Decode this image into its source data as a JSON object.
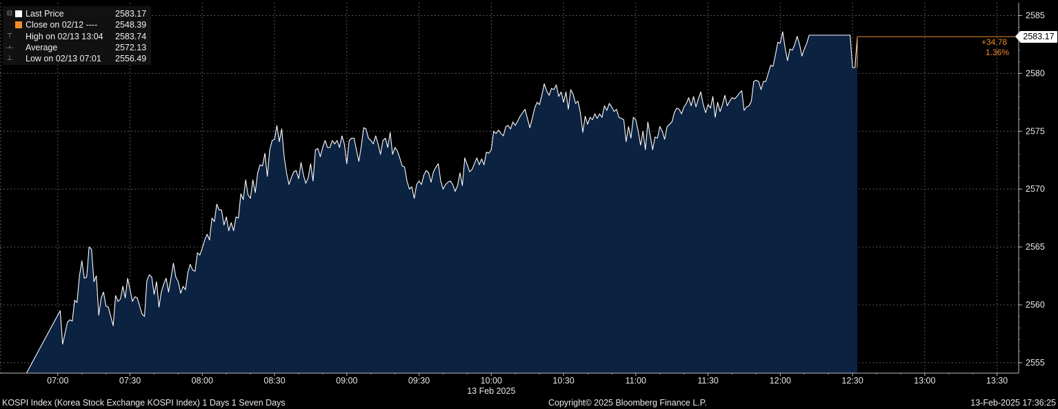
{
  "legend": {
    "items": [
      {
        "marker": "⊟",
        "label": "Last Price",
        "value": "2583.17",
        "color": "#ffffff"
      },
      {
        "marker": "",
        "label": "Close on 02/12",
        "dash": "----",
        "value": "2548.39",
        "color": "#f28b2c"
      },
      {
        "marker": "⊤",
        "label": "High on 02/13 13:04",
        "value": "2583.74",
        "color": ""
      },
      {
        "marker": "-+-",
        "label": "Average",
        "value": "2572.13",
        "color": ""
      },
      {
        "marker": "⊥",
        "label": "Low on 02/13 07:01",
        "value": "2556.49",
        "color": ""
      }
    ]
  },
  "change": {
    "abs": "+34.78",
    "pct": "1.36%"
  },
  "last_tag": "2583.17",
  "footer": {
    "left": "KOSPI Index (Korea Stock Exchange KOSPI Index) 1 Days 1 Seven Days",
    "center": "Copyright© 2025 Bloomberg Finance L.P.",
    "right": "13-Feb-2025 17:36:25"
  },
  "chart_data": {
    "type": "area",
    "series": [
      {
        "name": "Last Price",
        "color": "#ffffff",
        "fill": "#0c2241"
      }
    ],
    "xlabel": "13 Feb 2025",
    "x_ticks": [
      "07:00",
      "07:30",
      "08:00",
      "08:30",
      "09:00",
      "09:30",
      "10:00",
      "10:30",
      "11:00",
      "11:30",
      "12:00",
      "12:30",
      "13:00",
      "13:30"
    ],
    "y_ticks": [
      2555,
      2560,
      2565,
      2570,
      2575,
      2580,
      2585
    ],
    "ylim": [
      2554.1,
      2586.1
    ],
    "x_range_minutes": [
      396,
      819
    ],
    "grid": true,
    "points": [
      [
        407,
        2554.1
      ],
      [
        421,
        2559.5
      ],
      [
        422,
        2556.6
      ],
      [
        424,
        2558.5
      ],
      [
        425,
        2558.7
      ],
      [
        426,
        2558.6
      ],
      [
        427,
        2560.4
      ],
      [
        428,
        2560.2
      ],
      [
        429,
        2562.5
      ],
      [
        430,
        2563.8
      ],
      [
        431,
        2562.3
      ],
      [
        432,
        2562.4
      ],
      [
        433,
        2565.0
      ],
      [
        434,
        2564.8
      ],
      [
        435,
        2562.0
      ],
      [
        436,
        2562.5
      ],
      [
        437,
        2559.1
      ],
      [
        438,
        2560.6
      ],
      [
        439,
        2561.1
      ],
      [
        440,
        2559.9
      ],
      [
        441,
        2559.8
      ],
      [
        442,
        2559.0
      ],
      [
        443,
        2558.2
      ],
      [
        444,
        2560.8
      ],
      [
        445,
        2560.3
      ],
      [
        446,
        2560.5
      ],
      [
        447,
        2561.6
      ],
      [
        448,
        2560.6
      ],
      [
        449,
        2562.3
      ],
      [
        450,
        2561.3
      ],
      [
        451,
        2560.3
      ],
      [
        452,
        2560.7
      ],
      [
        453,
        2560.6
      ],
      [
        454,
        2559.9
      ],
      [
        455,
        2559.2
      ],
      [
        456,
        2559.0
      ],
      [
        457,
        2562.1
      ],
      [
        458,
        2562.6
      ],
      [
        459,
        2562.4
      ],
      [
        460,
        2560.9
      ],
      [
        461,
        2562.0
      ],
      [
        462,
        2559.8
      ],
      [
        463,
        2561.1
      ],
      [
        464,
        2561.8
      ],
      [
        465,
        2562.3
      ],
      [
        466,
        2561.1
      ],
      [
        467,
        2562.3
      ],
      [
        468,
        2563.6
      ],
      [
        469,
        2562.4
      ],
      [
        470,
        2562.0
      ],
      [
        471,
        2561.0
      ],
      [
        472,
        2561.6
      ],
      [
        473,
        2561.3
      ],
      [
        474,
        2562.8
      ],
      [
        475,
        2563.5
      ],
      [
        476,
        2563.0
      ],
      [
        477,
        2562.9
      ],
      [
        478,
        2564.5
      ],
      [
        479,
        2564.3
      ],
      [
        480,
        2564.9
      ],
      [
        481,
        2565.6
      ],
      [
        482,
        2566.1
      ],
      [
        483,
        2565.6
      ],
      [
        484,
        2567.5
      ],
      [
        485,
        2567.2
      ],
      [
        486,
        2568.7
      ],
      [
        487,
        2568.2
      ],
      [
        488,
        2568.2
      ],
      [
        489,
        2566.9
      ],
      [
        490,
        2567.6
      ],
      [
        491,
        2566.4
      ],
      [
        492,
        2567.1
      ],
      [
        493,
        2566.4
      ],
      [
        494,
        2567.6
      ],
      [
        495,
        2567.5
      ],
      [
        496,
        2569.6
      ],
      [
        497,
        2569.1
      ],
      [
        498,
        2570.8
      ],
      [
        499,
        2569.5
      ],
      [
        500,
        2569.2
      ],
      [
        501,
        2570.8
      ],
      [
        502,
        2569.7
      ],
      [
        503,
        2571.4
      ],
      [
        504,
        2572.1
      ],
      [
        505,
        2572.0
      ],
      [
        506,
        2573.1
      ],
      [
        507,
        2571.1
      ],
      [
        508,
        2573.4
      ],
      [
        509,
        2574.2
      ],
      [
        510,
        2574.3
      ],
      [
        511,
        2575.5
      ],
      [
        512,
        2574.1
      ],
      [
        513,
        2575.2
      ],
      [
        514,
        2572.8
      ],
      [
        515,
        2571.4
      ],
      [
        516,
        2570.4
      ],
      [
        517,
        2571.0
      ],
      [
        518,
        2571.5
      ],
      [
        519,
        2571.6
      ],
      [
        520,
        2570.9
      ],
      [
        521,
        2572.3
      ],
      [
        522,
        2571.2
      ],
      [
        523,
        2570.5
      ],
      [
        524,
        2571.0
      ],
      [
        525,
        2572.2
      ],
      [
        526,
        2570.7
      ],
      [
        527,
        2573.4
      ],
      [
        528,
        2573.5
      ],
      [
        529,
        2572.8
      ],
      [
        530,
        2573.6
      ],
      [
        531,
        2574.2
      ],
      [
        532,
        2573.6
      ],
      [
        533,
        2573.6
      ],
      [
        534,
        2574.2
      ],
      [
        535,
        2573.9
      ],
      [
        536,
        2574.2
      ],
      [
        537,
        2573.6
      ],
      [
        538,
        2574.6
      ],
      [
        539,
        2573.9
      ],
      [
        540,
        2572.2
      ],
      [
        541,
        2574.2
      ],
      [
        542,
        2574.4
      ],
      [
        543,
        2574.4
      ],
      [
        544,
        2573.4
      ],
      [
        545,
        2572.4
      ],
      [
        546,
        2573.7
      ],
      [
        547,
        2575.3
      ],
      [
        548,
        2575.2
      ],
      [
        549,
        2574.4
      ],
      [
        550,
        2574.2
      ],
      [
        551,
        2573.9
      ],
      [
        552,
        2574.6
      ],
      [
        553,
        2573.9
      ],
      [
        554,
        2573.0
      ],
      [
        555,
        2574.2
      ],
      [
        556,
        2574.4
      ],
      [
        557,
        2573.6
      ],
      [
        558,
        2574.9
      ],
      [
        559,
        2573.0
      ],
      [
        560,
        2573.6
      ],
      [
        561,
        2573.3
      ],
      [
        562,
        2572.7
      ],
      [
        563,
        2572.0
      ],
      [
        564,
        2571.9
      ],
      [
        565,
        2570.7
      ],
      [
        566,
        2570.0
      ],
      [
        567,
        2570.2
      ],
      [
        568,
        2569.2
      ],
      [
        569,
        2570.4
      ],
      [
        570,
        2570.7
      ],
      [
        571,
        2570.4
      ],
      [
        572,
        2571.2
      ],
      [
        573,
        2571.6
      ],
      [
        574,
        2571.4
      ],
      [
        575,
        2570.6
      ],
      [
        576,
        2571.5
      ],
      [
        577,
        2571.9
      ],
      [
        578,
        2572.2
      ],
      [
        579,
        2570.7
      ],
      [
        580,
        2570.0
      ],
      [
        581,
        2570.4
      ],
      [
        582,
        2570.6
      ],
      [
        583,
        2570.7
      ],
      [
        584,
        2570.4
      ],
      [
        585,
        2569.8
      ],
      [
        586,
        2570.3
      ],
      [
        587,
        2571.4
      ],
      [
        588,
        2570.3
      ],
      [
        589,
        2572.7
      ],
      [
        590,
        2572.1
      ],
      [
        591,
        2571.5
      ],
      [
        592,
        2571.7
      ],
      [
        593,
        2572.2
      ],
      [
        594,
        2572.7
      ],
      [
        595,
        2572.1
      ],
      [
        596,
        2572.6
      ],
      [
        597,
        2572.1
      ],
      [
        598,
        2573.2
      ],
      [
        599,
        2573.1
      ],
      [
        600,
        2573.4
      ],
      [
        601,
        2575.0
      ],
      [
        602,
        2574.8
      ],
      [
        603,
        2575.1
      ],
      [
        604,
        2574.8
      ],
      [
        605,
        2574.6
      ],
      [
        606,
        2575.4
      ],
      [
        607,
        2575.5
      ],
      [
        608,
        2575.2
      ],
      [
        609,
        2575.8
      ],
      [
        610,
        2575.5
      ],
      [
        611,
        2575.9
      ],
      [
        612,
        2576.3
      ],
      [
        613,
        2576.6
      ],
      [
        614,
        2576.9
      ],
      [
        615,
        2576.1
      ],
      [
        616,
        2575.3
      ],
      [
        617,
        2576.1
      ],
      [
        618,
        2577.0
      ],
      [
        619,
        2577.5
      ],
      [
        620,
        2577.3
      ],
      [
        621,
        2578.1
      ],
      [
        622,
        2579.1
      ],
      [
        623,
        2578.5
      ],
      [
        624,
        2578.1
      ],
      [
        625,
        2578.7
      ],
      [
        626,
        2578.6
      ],
      [
        627,
        2579.0
      ],
      [
        628,
        2578.0
      ],
      [
        629,
        2578.4
      ],
      [
        630,
        2577.5
      ],
      [
        631,
        2578.4
      ],
      [
        632,
        2576.9
      ],
      [
        633,
        2578.6
      ],
      [
        634,
        2578.2
      ],
      [
        635,
        2577.4
      ],
      [
        636,
        2577.6
      ],
      [
        637,
        2576.6
      ],
      [
        638,
        2574.9
      ],
      [
        639,
        2576.3
      ],
      [
        640,
        2575.6
      ],
      [
        641,
        2576.2
      ],
      [
        642,
        2576.0
      ],
      [
        643,
        2576.5
      ],
      [
        644,
        2576.1
      ],
      [
        645,
        2576.5
      ],
      [
        646,
        2576.2
      ],
      [
        647,
        2577.2
      ],
      [
        648,
        2576.8
      ],
      [
        649,
        2577.4
      ],
      [
        650,
        2577.1
      ],
      [
        651,
        2576.7
      ],
      [
        652,
        2576.9
      ],
      [
        653,
        2576.2
      ],
      [
        654,
        2576.1
      ],
      [
        655,
        2576.0
      ],
      [
        656,
        2574.1
      ],
      [
        657,
        2575.4
      ],
      [
        658,
        2574.4
      ],
      [
        659,
        2576.2
      ],
      [
        660,
        2576.0
      ],
      [
        661,
        2575.0
      ],
      [
        662,
        2573.8
      ],
      [
        663,
        2575.0
      ],
      [
        664,
        2573.4
      ],
      [
        665,
        2575.8
      ],
      [
        666,
        2574.6
      ],
      [
        667,
        2573.4
      ],
      [
        668,
        2574.5
      ],
      [
        669,
        2574.4
      ],
      [
        670,
        2575.4
      ],
      [
        671,
        2575.0
      ],
      [
        672,
        2574.3
      ],
      [
        673,
        2575.4
      ],
      [
        674,
        2575.6
      ],
      [
        675,
        2575.8
      ],
      [
        676,
        2576.6
      ],
      [
        677,
        2577.0
      ],
      [
        678,
        2576.9
      ],
      [
        679,
        2576.5
      ],
      [
        680,
        2577.1
      ],
      [
        681,
        2577.4
      ],
      [
        682,
        2577.9
      ],
      [
        683,
        2577.2
      ],
      [
        684,
        2578.0
      ],
      [
        685,
        2577.1
      ],
      [
        686,
        2577.8
      ],
      [
        687,
        2578.4
      ],
      [
        688,
        2577.3
      ],
      [
        689,
        2576.6
      ],
      [
        690,
        2577.3
      ],
      [
        691,
        2577.0
      ],
      [
        692,
        2578.0
      ],
      [
        693,
        2576.2
      ],
      [
        694,
        2577.5
      ],
      [
        695,
        2576.7
      ],
      [
        696,
        2577.3
      ],
      [
        697,
        2578.1
      ],
      [
        698,
        2577.2
      ],
      [
        699,
        2577.6
      ],
      [
        700,
        2577.9
      ],
      [
        701,
        2577.8
      ],
      [
        702,
        2578.0
      ],
      [
        703,
        2578.3
      ],
      [
        704,
        2578.5
      ],
      [
        705,
        2576.8
      ],
      [
        706,
        2577.1
      ],
      [
        707,
        2577.2
      ],
      [
        708,
        2577.6
      ],
      [
        709,
        2579.3
      ],
      [
        710,
        2579.4
      ],
      [
        711,
        2579.3
      ],
      [
        712,
        2578.6
      ],
      [
        713,
        2579.3
      ],
      [
        714,
        2579.3
      ],
      [
        715,
        2580.0
      ],
      [
        716,
        2580.7
      ],
      [
        717,
        2580.6
      ],
      [
        718,
        2581.6
      ],
      [
        719,
        2582.7
      ],
      [
        720,
        2582.6
      ],
      [
        721,
        2583.6
      ],
      [
        722,
        2582.2
      ],
      [
        723,
        2581.1
      ],
      [
        724,
        2582.1
      ],
      [
        725,
        2582.0
      ],
      [
        726,
        2582.5
      ],
      [
        727,
        2583.2
      ],
      [
        728,
        2582.5
      ],
      [
        729,
        2581.5
      ],
      [
        730,
        2582.1
      ],
      [
        731,
        2582.6
      ],
      [
        732,
        2583.3
      ],
      [
        733,
        2583.3
      ],
      [
        749,
        2583.3
      ],
      [
        750,
        2580.5
      ],
      [
        751,
        2580.5
      ],
      [
        752,
        2583.17
      ]
    ]
  }
}
